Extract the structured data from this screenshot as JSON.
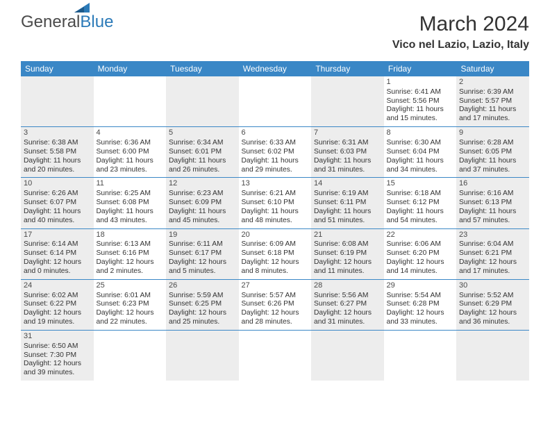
{
  "brand": {
    "general": "General",
    "blue": "Blue"
  },
  "title": "March 2024",
  "subtitle": "Vico nel Lazio, Lazio, Italy",
  "colors": {
    "header_bg": "#3a87c6",
    "header_text": "#ffffff",
    "shaded_bg": "#ededed",
    "row_border": "#3a87c6",
    "text": "#333333",
    "logo_gray": "#4a4a4a",
    "logo_blue": "#2b7ab8"
  },
  "day_headers": [
    "Sunday",
    "Monday",
    "Tuesday",
    "Wednesday",
    "Thursday",
    "Friday",
    "Saturday"
  ],
  "weeks": [
    [
      {
        "shaded": true
      },
      {},
      {
        "shaded": true
      },
      {},
      {
        "shaded": true
      },
      {
        "day": "1",
        "sunrise": "Sunrise: 6:41 AM",
        "sunset": "Sunset: 5:56 PM",
        "dl1": "Daylight: 11 hours",
        "dl2": "and 15 minutes."
      },
      {
        "shaded": true,
        "day": "2",
        "sunrise": "Sunrise: 6:39 AM",
        "sunset": "Sunset: 5:57 PM",
        "dl1": "Daylight: 11 hours",
        "dl2": "and 17 minutes."
      }
    ],
    [
      {
        "shaded": true,
        "day": "3",
        "sunrise": "Sunrise: 6:38 AM",
        "sunset": "Sunset: 5:58 PM",
        "dl1": "Daylight: 11 hours",
        "dl2": "and 20 minutes."
      },
      {
        "day": "4",
        "sunrise": "Sunrise: 6:36 AM",
        "sunset": "Sunset: 6:00 PM",
        "dl1": "Daylight: 11 hours",
        "dl2": "and 23 minutes."
      },
      {
        "shaded": true,
        "day": "5",
        "sunrise": "Sunrise: 6:34 AM",
        "sunset": "Sunset: 6:01 PM",
        "dl1": "Daylight: 11 hours",
        "dl2": "and 26 minutes."
      },
      {
        "day": "6",
        "sunrise": "Sunrise: 6:33 AM",
        "sunset": "Sunset: 6:02 PM",
        "dl1": "Daylight: 11 hours",
        "dl2": "and 29 minutes."
      },
      {
        "shaded": true,
        "day": "7",
        "sunrise": "Sunrise: 6:31 AM",
        "sunset": "Sunset: 6:03 PM",
        "dl1": "Daylight: 11 hours",
        "dl2": "and 31 minutes."
      },
      {
        "day": "8",
        "sunrise": "Sunrise: 6:30 AM",
        "sunset": "Sunset: 6:04 PM",
        "dl1": "Daylight: 11 hours",
        "dl2": "and 34 minutes."
      },
      {
        "shaded": true,
        "day": "9",
        "sunrise": "Sunrise: 6:28 AM",
        "sunset": "Sunset: 6:05 PM",
        "dl1": "Daylight: 11 hours",
        "dl2": "and 37 minutes."
      }
    ],
    [
      {
        "shaded": true,
        "day": "10",
        "sunrise": "Sunrise: 6:26 AM",
        "sunset": "Sunset: 6:07 PM",
        "dl1": "Daylight: 11 hours",
        "dl2": "and 40 minutes."
      },
      {
        "day": "11",
        "sunrise": "Sunrise: 6:25 AM",
        "sunset": "Sunset: 6:08 PM",
        "dl1": "Daylight: 11 hours",
        "dl2": "and 43 minutes."
      },
      {
        "shaded": true,
        "day": "12",
        "sunrise": "Sunrise: 6:23 AM",
        "sunset": "Sunset: 6:09 PM",
        "dl1": "Daylight: 11 hours",
        "dl2": "and 45 minutes."
      },
      {
        "day": "13",
        "sunrise": "Sunrise: 6:21 AM",
        "sunset": "Sunset: 6:10 PM",
        "dl1": "Daylight: 11 hours",
        "dl2": "and 48 minutes."
      },
      {
        "shaded": true,
        "day": "14",
        "sunrise": "Sunrise: 6:19 AM",
        "sunset": "Sunset: 6:11 PM",
        "dl1": "Daylight: 11 hours",
        "dl2": "and 51 minutes."
      },
      {
        "day": "15",
        "sunrise": "Sunrise: 6:18 AM",
        "sunset": "Sunset: 6:12 PM",
        "dl1": "Daylight: 11 hours",
        "dl2": "and 54 minutes."
      },
      {
        "shaded": true,
        "day": "16",
        "sunrise": "Sunrise: 6:16 AM",
        "sunset": "Sunset: 6:13 PM",
        "dl1": "Daylight: 11 hours",
        "dl2": "and 57 minutes."
      }
    ],
    [
      {
        "shaded": true,
        "day": "17",
        "sunrise": "Sunrise: 6:14 AM",
        "sunset": "Sunset: 6:14 PM",
        "dl1": "Daylight: 12 hours",
        "dl2": "and 0 minutes."
      },
      {
        "day": "18",
        "sunrise": "Sunrise: 6:13 AM",
        "sunset": "Sunset: 6:16 PM",
        "dl1": "Daylight: 12 hours",
        "dl2": "and 2 minutes."
      },
      {
        "shaded": true,
        "day": "19",
        "sunrise": "Sunrise: 6:11 AM",
        "sunset": "Sunset: 6:17 PM",
        "dl1": "Daylight: 12 hours",
        "dl2": "and 5 minutes."
      },
      {
        "day": "20",
        "sunrise": "Sunrise: 6:09 AM",
        "sunset": "Sunset: 6:18 PM",
        "dl1": "Daylight: 12 hours",
        "dl2": "and 8 minutes."
      },
      {
        "shaded": true,
        "day": "21",
        "sunrise": "Sunrise: 6:08 AM",
        "sunset": "Sunset: 6:19 PM",
        "dl1": "Daylight: 12 hours",
        "dl2": "and 11 minutes."
      },
      {
        "day": "22",
        "sunrise": "Sunrise: 6:06 AM",
        "sunset": "Sunset: 6:20 PM",
        "dl1": "Daylight: 12 hours",
        "dl2": "and 14 minutes."
      },
      {
        "shaded": true,
        "day": "23",
        "sunrise": "Sunrise: 6:04 AM",
        "sunset": "Sunset: 6:21 PM",
        "dl1": "Daylight: 12 hours",
        "dl2": "and 17 minutes."
      }
    ],
    [
      {
        "shaded": true,
        "day": "24",
        "sunrise": "Sunrise: 6:02 AM",
        "sunset": "Sunset: 6:22 PM",
        "dl1": "Daylight: 12 hours",
        "dl2": "and 19 minutes."
      },
      {
        "day": "25",
        "sunrise": "Sunrise: 6:01 AM",
        "sunset": "Sunset: 6:23 PM",
        "dl1": "Daylight: 12 hours",
        "dl2": "and 22 minutes."
      },
      {
        "shaded": true,
        "day": "26",
        "sunrise": "Sunrise: 5:59 AM",
        "sunset": "Sunset: 6:25 PM",
        "dl1": "Daylight: 12 hours",
        "dl2": "and 25 minutes."
      },
      {
        "day": "27",
        "sunrise": "Sunrise: 5:57 AM",
        "sunset": "Sunset: 6:26 PM",
        "dl1": "Daylight: 12 hours",
        "dl2": "and 28 minutes."
      },
      {
        "shaded": true,
        "day": "28",
        "sunrise": "Sunrise: 5:56 AM",
        "sunset": "Sunset: 6:27 PM",
        "dl1": "Daylight: 12 hours",
        "dl2": "and 31 minutes."
      },
      {
        "day": "29",
        "sunrise": "Sunrise: 5:54 AM",
        "sunset": "Sunset: 6:28 PM",
        "dl1": "Daylight: 12 hours",
        "dl2": "and 33 minutes."
      },
      {
        "shaded": true,
        "day": "30",
        "sunrise": "Sunrise: 5:52 AM",
        "sunset": "Sunset: 6:29 PM",
        "dl1": "Daylight: 12 hours",
        "dl2": "and 36 minutes."
      }
    ],
    [
      {
        "shaded": true,
        "day": "31",
        "sunrise": "Sunrise: 6:50 AM",
        "sunset": "Sunset: 7:30 PM",
        "dl1": "Daylight: 12 hours",
        "dl2": "and 39 minutes."
      },
      {},
      {
        "shaded": true
      },
      {},
      {
        "shaded": true
      },
      {},
      {
        "shaded": true
      }
    ]
  ]
}
